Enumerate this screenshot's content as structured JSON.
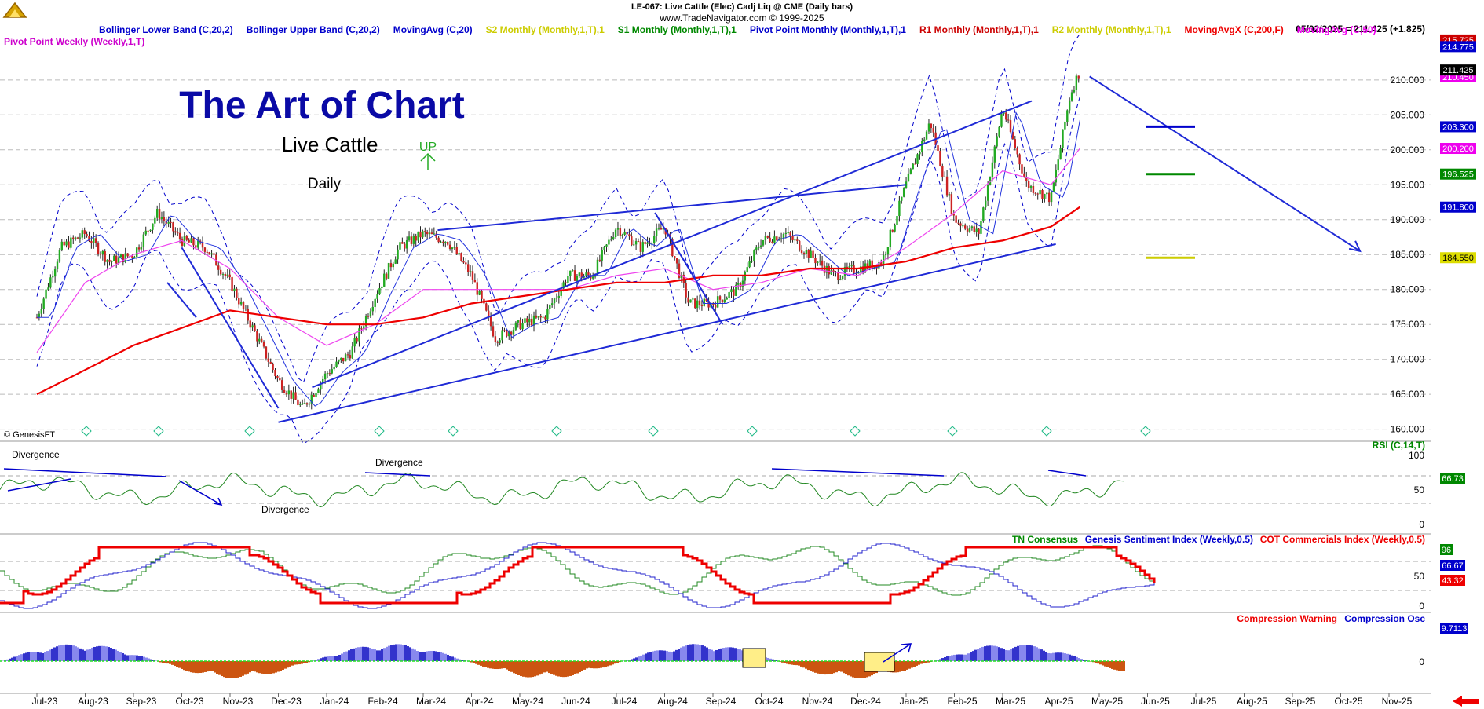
{
  "header": {
    "line1": "LE-067:  Live Cattle (Elec) Cadj Liq @ CME  (Daily bars)",
    "line2": "www.TradeNavigator.com © 1999-2025",
    "date_readout": "05/02/2025 = 211.425 (+1.825)"
  },
  "legend": {
    "items": [
      {
        "label": "Bollinger Lower Band (C,20,2)",
        "color": "#0000cc"
      },
      {
        "label": "Bollinger Upper Band (C,20,2)",
        "color": "#0000cc"
      },
      {
        "label": "MovingAvg (C,20)",
        "color": "#0000cc"
      },
      {
        "label": "S2 Monthly (Monthly,1,T),1",
        "color": "#cccc00"
      },
      {
        "label": "S1 Monthly (Monthly,1,T),1",
        "color": "#008800"
      },
      {
        "label": "Pivot Point Monthly (Monthly,1,T),1",
        "color": "#0000cc"
      },
      {
        "label": "R1 Monthly (Monthly,1,T),1",
        "color": "#cc0000"
      },
      {
        "label": "R2 Monthly (Monthly,1,T),1",
        "color": "#cccc00"
      },
      {
        "label": "MovingAvgX (C,200,F)",
        "color": "#ee0000"
      },
      {
        "label": "MovingAvg (C,50)",
        "color": "#ee00ee"
      }
    ],
    "row2": "Pivot Point Weekly (Weekly,1,T)"
  },
  "annotations": {
    "title": "The Art of Chart",
    "subtitle": "Live Cattle",
    "timeframe": "Daily",
    "up_label": "UP",
    "copyright": "© GenesisFT",
    "div1": "Divergence",
    "div2": "Divergence",
    "div3": "Divergence"
  },
  "price_badges": [
    {
      "text": "215.725",
      "value": 215.725,
      "bg": "#cc0000",
      "fg": "#ffffff"
    },
    {
      "text": "214.775",
      "value": 214.775,
      "bg": "#0000cc",
      "fg": "#ffffff"
    },
    {
      "text": "210.450",
      "value": 210.45,
      "bg": "#ee00ee",
      "fg": "#ffffff"
    },
    {
      "text": "211.425",
      "value": 211.425,
      "bg": "#000000",
      "fg": "#ffffff"
    },
    {
      "text": "203.300",
      "value": 203.3,
      "bg": "#0000cc",
      "fg": "#ffffff"
    },
    {
      "text": "200.200",
      "value": 200.2,
      "bg": "#ee00ee",
      "fg": "#ffffff"
    },
    {
      "text": "196.525",
      "value": 196.525,
      "bg": "#008800",
      "fg": "#ffffff"
    },
    {
      "text": "191.800",
      "value": 191.8,
      "bg": "#0000cc",
      "fg": "#ffffff"
    },
    {
      "text": "184.550",
      "value": 184.55,
      "bg": "#dddd00",
      "fg": "#000000"
    }
  ],
  "rsi_panel": {
    "label": "RSI (C,14,T)",
    "ticks": [
      "100",
      "50",
      "0"
    ],
    "badge": "66.73"
  },
  "consensus_panel": {
    "labels": [
      {
        "text": "TN Consensus",
        "color": "#008800"
      },
      {
        "text": "Genesis Sentiment Index (Weekly,0.5)",
        "color": "#0000cc"
      },
      {
        "text": "COT Commercials Index (Weekly,0.5)",
        "color": "#ee0000"
      }
    ],
    "ticks": [
      "50",
      "0"
    ],
    "badges": [
      {
        "text": "96",
        "bg": "#008800"
      },
      {
        "text": "66.67",
        "bg": "#0000cc"
      },
      {
        "text": "43.32",
        "bg": "#ee0000"
      }
    ]
  },
  "compression_panel": {
    "labels": [
      {
        "text": "Compression Warning",
        "color": "#ee0000"
      },
      {
        "text": "Compression Osc",
        "color": "#0000cc"
      }
    ],
    "tick": "0",
    "badge": "9.7113"
  },
  "chart_data": {
    "type": "line",
    "title": "The Art of Chart",
    "x_labels": [
      "Jul-23",
      "Aug-23",
      "Sep-23",
      "Oct-23",
      "Nov-23",
      "Dec-23",
      "Jan-24",
      "Feb-24",
      "Mar-24",
      "Apr-24",
      "May-24",
      "Jun-24",
      "Jul-24",
      "Aug-24",
      "Sep-24",
      "Oct-24",
      "Nov-24",
      "Dec-24",
      "Jan-25",
      "Feb-25",
      "Mar-25",
      "Apr-25",
      "May-25",
      "Jun-25",
      "Jul-25",
      "Aug-25",
      "Sep-25",
      "Oct-25",
      "Nov-25"
    ],
    "y_ticks": [
      160,
      165,
      170,
      175,
      180,
      185,
      190,
      195,
      200,
      205,
      210
    ],
    "ylim": [
      158.5,
      216.5
    ],
    "grid": true,
    "series": [
      {
        "name": "Live Cattle",
        "type": "candlestick",
        "x": [
          0,
          0.5,
          1,
          1.5,
          2,
          2.5,
          3,
          3.5,
          4,
          4.5,
          5,
          5.5,
          6,
          6.5,
          7,
          7.5,
          8,
          8.5,
          9,
          9.5,
          10,
          10.5,
          11,
          11.5,
          12,
          12.5,
          13,
          13.5,
          14,
          14.5,
          15,
          15.5,
          16,
          16.5,
          17,
          17.5,
          18,
          18.5,
          19,
          19.5,
          20,
          20.5,
          21,
          21.4,
          21.6
        ],
        "y": [
          176,
          186,
          188,
          184,
          185,
          191,
          187,
          186,
          181,
          174,
          167,
          163,
          168,
          171,
          179,
          186,
          188,
          187,
          182,
          173,
          175,
          176,
          182,
          182,
          189,
          186,
          189,
          178,
          178,
          180,
          187,
          188,
          185,
          182,
          183,
          184,
          195,
          204,
          190,
          188,
          206,
          195,
          193,
          208,
          211.4
        ]
      },
      {
        "name": "MovingAvgX (C,200,F)",
        "x": [
          0,
          2,
          4,
          5,
          6,
          7,
          8,
          9,
          10,
          11,
          12,
          13,
          14,
          15,
          16,
          17,
          18,
          19,
          20,
          21,
          21.6
        ],
        "y": [
          165,
          172,
          177,
          176,
          175,
          175,
          176,
          178,
          179,
          180,
          181,
          181,
          182,
          182,
          183,
          183,
          184,
          186,
          187,
          189,
          191.8
        ]
      },
      {
        "name": "MovingAvg (C,50)",
        "x": [
          0,
          1,
          2,
          3,
          4,
          5,
          6,
          7,
          8,
          9,
          10,
          11,
          12,
          13,
          14,
          15,
          16,
          17,
          18,
          19,
          20,
          21,
          21.6
        ],
        "y": [
          171,
          181,
          185,
          187,
          183,
          176,
          172,
          175,
          180,
          180,
          180,
          180,
          182,
          183,
          180,
          181,
          183,
          182,
          186,
          191,
          197,
          195,
          200.2
        ]
      }
    ],
    "trendlines": [
      {
        "from": [
          5.0,
          161.0
        ],
        "to": [
          21.1,
          186.5
        ],
        "label": "lower channel"
      },
      {
        "from": [
          5.7,
          166.0
        ],
        "to": [
          20.6,
          207.0
        ],
        "label": "upper channel"
      },
      {
        "from": [
          8.3,
          188.5
        ],
        "to": [
          18.0,
          195.0
        ],
        "label": "mid channel"
      },
      {
        "from": [
          21.8,
          210.5
        ],
        "to": [
          27.4,
          185.5
        ],
        "label": "projection arrow"
      }
    ],
    "pivot_levels": [
      {
        "name": "Pivot Point Monthly",
        "value": 203.3,
        "color": "#0000cc"
      },
      {
        "name": "S1 Monthly",
        "value": 196.525,
        "color": "#008800"
      },
      {
        "name": "S2 Monthly",
        "value": 184.55,
        "color": "#cccc00"
      },
      {
        "name": "R1 Monthly",
        "value": 210.45,
        "color": "#cc0000"
      }
    ]
  }
}
